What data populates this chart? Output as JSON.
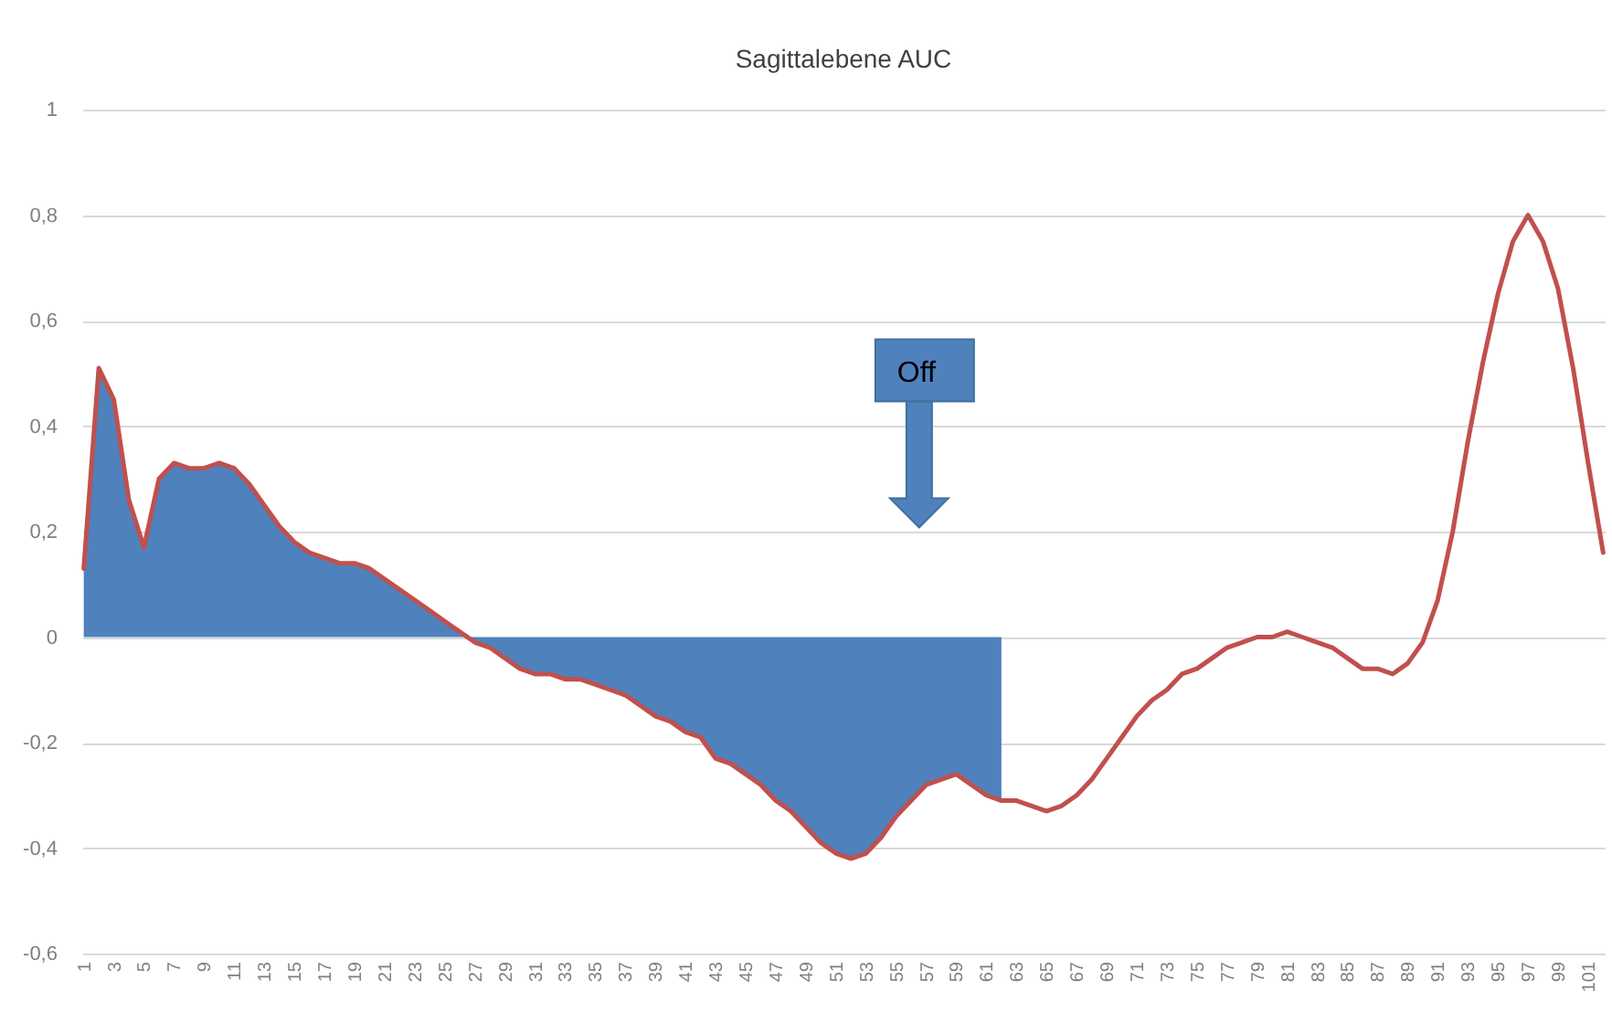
{
  "chart_data": {
    "type": "line",
    "title": "Sagittalebene AUC",
    "categories": [
      "1",
      null,
      "3",
      null,
      "5",
      null,
      "7",
      null,
      "9",
      null,
      "11",
      null,
      "13",
      null,
      "15",
      null,
      "17",
      null,
      "19",
      null,
      "21",
      null,
      "23",
      null,
      "25",
      null,
      "27",
      null,
      "29",
      null,
      "31",
      null,
      "33",
      null,
      "35",
      null,
      "37",
      null,
      "39",
      null,
      "41",
      null,
      "43",
      null,
      "45",
      null,
      "47",
      null,
      "49",
      null,
      "51",
      null,
      "53",
      null,
      "55",
      null,
      "57",
      null,
      "59",
      null,
      "61",
      null,
      "63",
      null,
      "65",
      null,
      "67",
      null,
      "69",
      null,
      "71",
      null,
      "73",
      null,
      "75",
      null,
      "77",
      null,
      "79",
      null,
      "81",
      null,
      "83",
      null,
      "85",
      null,
      "87",
      null,
      "89",
      null,
      "91",
      null,
      "93",
      null,
      "95",
      null,
      "97",
      null,
      "99",
      null,
      "101",
      null
    ],
    "series": [
      {
        "type": "area",
        "color": "#4f81bd",
        "values": [
          0.13,
          0.51,
          0.45,
          0.26,
          0.17,
          0.3,
          0.33,
          0.32,
          0.32,
          0.33,
          0.32,
          0.29,
          0.25,
          0.21,
          0.18,
          0.16,
          0.15,
          0.14,
          0.14,
          0.13,
          0.11,
          0.09,
          0.07,
          0.05,
          0.03,
          0.01,
          -0.01,
          -0.02,
          -0.04,
          -0.06,
          -0.07,
          -0.07,
          -0.08,
          -0.08,
          -0.09,
          -0.1,
          -0.11,
          -0.13,
          -0.15,
          -0.16,
          -0.18,
          -0.19,
          -0.23,
          -0.24,
          -0.26,
          -0.28,
          -0.31,
          -0.33,
          -0.36,
          -0.39,
          -0.41,
          -0.42,
          -0.41,
          -0.38,
          -0.34,
          -0.31,
          -0.28,
          -0.27,
          -0.26,
          -0.28,
          -0.3,
          -0.31,
          null,
          null,
          null,
          null,
          null,
          null,
          null,
          null,
          null,
          null,
          null,
          null,
          null,
          null,
          null,
          null,
          null,
          null,
          null,
          null,
          null,
          null,
          null,
          null,
          null,
          null,
          null,
          null,
          null,
          null,
          null,
          null,
          null,
          null,
          null,
          null,
          null,
          null,
          null,
          null
        ]
      },
      {
        "color": "#c0504d",
        "values": [
          0.13,
          0.51,
          0.45,
          0.26,
          0.17,
          0.3,
          0.33,
          0.32,
          0.32,
          0.33,
          0.32,
          0.29,
          0.25,
          0.21,
          0.18,
          0.16,
          0.15,
          0.14,
          0.14,
          0.13,
          0.11,
          0.09,
          0.07,
          0.05,
          0.03,
          0.01,
          -0.01,
          -0.02,
          -0.04,
          -0.06,
          -0.07,
          -0.07,
          -0.08,
          -0.08,
          -0.09,
          -0.1,
          -0.11,
          -0.13,
          -0.15,
          -0.16,
          -0.18,
          -0.19,
          -0.23,
          -0.24,
          -0.26,
          -0.28,
          -0.31,
          -0.33,
          -0.36,
          -0.39,
          -0.41,
          -0.42,
          -0.41,
          -0.38,
          -0.34,
          -0.31,
          -0.28,
          -0.27,
          -0.26,
          -0.28,
          -0.3,
          -0.31,
          -0.31,
          -0.32,
          -0.33,
          -0.32,
          -0.3,
          -0.27,
          -0.23,
          -0.19,
          -0.15,
          -0.12,
          -0.1,
          -0.07,
          -0.06,
          -0.04,
          -0.02,
          -0.01,
          0,
          0,
          0.01,
          0,
          -0.01,
          -0.02,
          -0.04,
          -0.06,
          -0.06,
          -0.07,
          -0.05,
          -0.01,
          0.07,
          0.2,
          0.37,
          0.52,
          0.65,
          0.75,
          0.8,
          0.75,
          0.66,
          0.51,
          0.33,
          0.16
        ]
      }
    ],
    "annotations": [
      "Off"
    ],
    "ylim": [
      -0.6,
      1
    ],
    "yticks": [
      {
        "value": -0.6,
        "label": "-0,6"
      },
      {
        "value": -0.4,
        "label": "-0,4"
      },
      {
        "value": -0.2,
        "label": "-0,2"
      },
      0,
      {
        "value": 0.2,
        "label": "0,2"
      },
      {
        "value": 0.4,
        "label": "0,4"
      },
      {
        "value": 0.6,
        "label": "0,6"
      },
      {
        "value": 0.8,
        "label": "0,8"
      },
      1
    ],
    "grid": "y"
  }
}
